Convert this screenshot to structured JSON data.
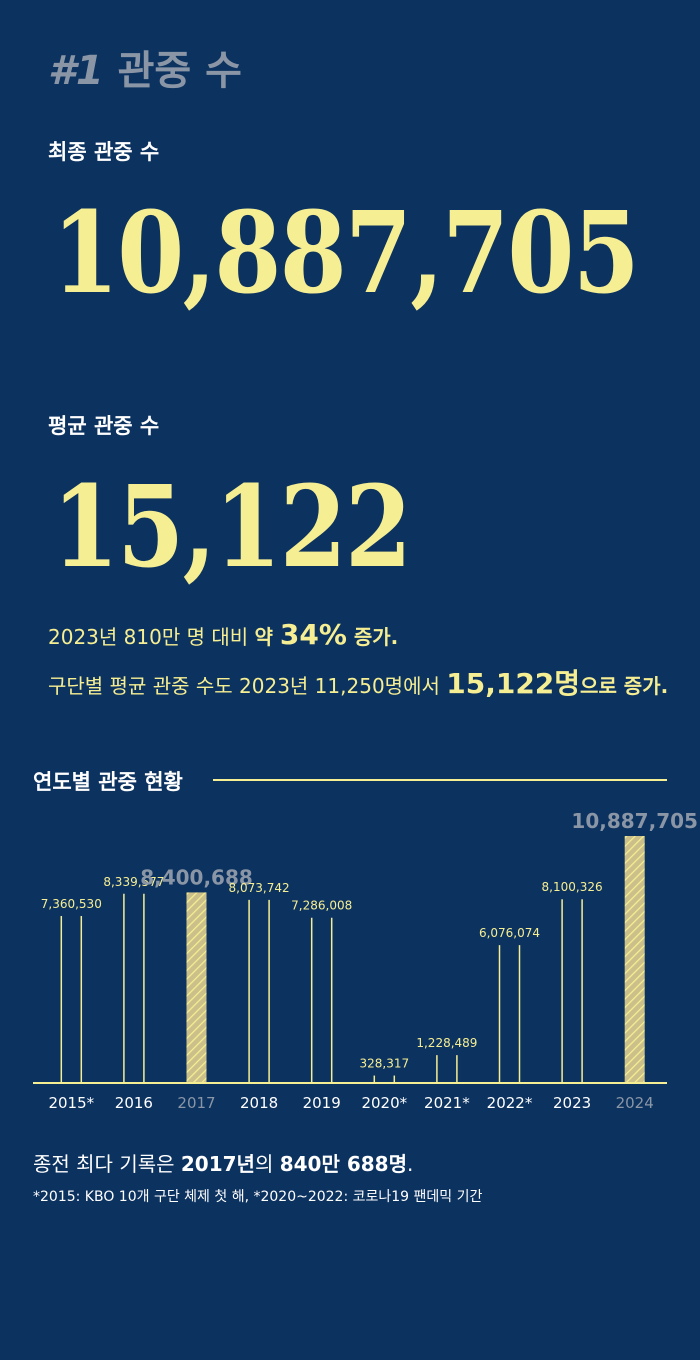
{
  "section": {
    "number": "#1",
    "title": "관중 수"
  },
  "total": {
    "label": "최종 관중 수",
    "value": "10,887,705"
  },
  "average": {
    "label": "평균 관중 수",
    "value": "15,122"
  },
  "notes": {
    "line1_a": "2023년 810만 명 대비 ",
    "line1_b": "약 ",
    "line1_c": "34%",
    "line1_d": " 증가.",
    "line2_a": "구단별 평균 관중 수도 2023년 11,250명에서 ",
    "line2_b": "15,122명",
    "line2_c": "으로 증가."
  },
  "chart_heading": "연도별 관중 현황",
  "chart_data": {
    "type": "bar",
    "categories": [
      "2015*",
      "2016",
      "2017",
      "2018",
      "2019",
      "2020*",
      "2021*",
      "2022*",
      "2023",
      "2024"
    ],
    "values": [
      7360530,
      8339577,
      8400688,
      8073742,
      7286008,
      328317,
      1228489,
      6076074,
      8100326,
      10887705
    ],
    "data_labels": [
      "7,360,530",
      "8,339,577",
      "8,400,688",
      "8,073,742",
      "7,286,008",
      "328,317",
      "1,228,489",
      "6,076,074",
      "8,100,326",
      "10,887,705"
    ],
    "highlighted": [
      "2017",
      "2024"
    ],
    "title": "연도별 관중 현황",
    "xlabel": "",
    "ylabel": "",
    "ylim": [
      0,
      10887705
    ],
    "colors": {
      "line": "#f6ee92",
      "highlight": "#ccc08a",
      "highlight_label": "#8a96a6",
      "axis": "#f6ee92"
    }
  },
  "footer": {
    "main_a": "종전 최다 기록은 ",
    "main_b": "2017년",
    "main_c": "의 ",
    "main_d": "840만 688명",
    "main_e": ".",
    "footnote": "*2015: KBO 10개 구단 체제 첫 해, *2020~2022: 코로나19 팬데믹 기간"
  }
}
